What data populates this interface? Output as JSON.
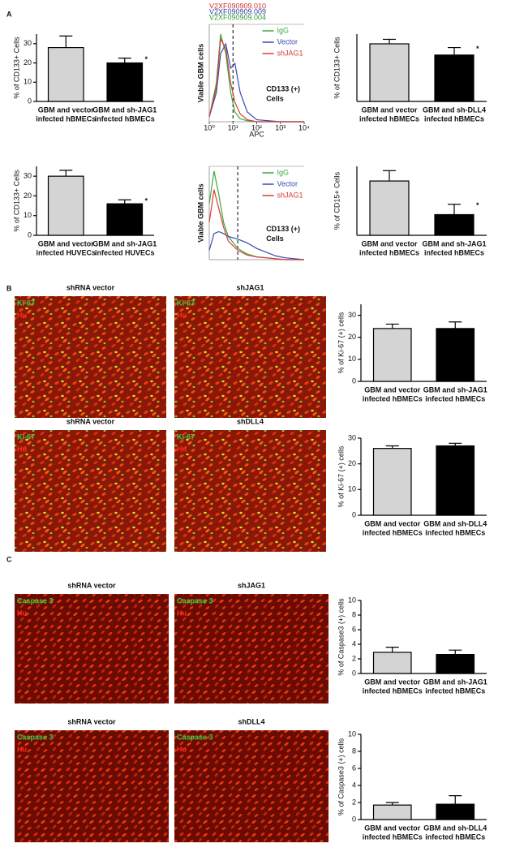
{
  "panel_labels": [
    "A",
    "B",
    "C"
  ],
  "images": [
    {
      "title": "shRNA vector",
      "stain": "Ki-67",
      "counterstain": "Hu"
    },
    {
      "title": "shJAG1",
      "stain": "Ki-67",
      "counterstain": "Hu"
    },
    {
      "title": "shRNA vector",
      "stain": "Ki-67",
      "counterstain": "Hu"
    },
    {
      "title": "shDLL4",
      "stain": "Ki-67",
      "counterstain": "Hu"
    },
    {
      "title": "shRNA vector",
      "stain": "Caspase 3",
      "counterstain": "Hu"
    },
    {
      "title": "shJAG1",
      "stain": "Caspase 3",
      "counterstain": "Hu"
    },
    {
      "title": "shRNA vector",
      "stain": "Caspase 3",
      "counterstain": "Hu"
    },
    {
      "title": "shDLL4",
      "stain": "Caspase 3",
      "counterstain": "Hu"
    }
  ],
  "chart_data": [
    {
      "type": "bar",
      "ylabel": "% of CD133+ Cells",
      "categories": [
        [
          "GBM and vector",
          "infected hBMECs"
        ],
        [
          "GBM and sh-JAG1",
          "infected hBMECs"
        ]
      ],
      "values": [
        28,
        20
      ],
      "errors": [
        6,
        2.5
      ],
      "colors": [
        "#d4d4d4",
        "#000000"
      ],
      "ylim": [
        0,
        35
      ],
      "yticks": [
        0,
        10,
        20,
        30
      ],
      "annotation": "*"
    },
    {
      "type": "line",
      "ylabel": "Viable GBM cells",
      "xlabel": "APC",
      "log_x": true,
      "header_labels": [
        {
          "text": "V2XF090909.010",
          "color": "#d03030"
        },
        {
          "text": "V2XF090909.009",
          "color": "#3040b0"
        },
        {
          "text": "V2XF090909.004",
          "color": "#30a030"
        }
      ],
      "x": [
        1,
        2,
        3,
        5,
        8,
        12,
        20,
        40,
        100,
        1000,
        10000
      ],
      "xlim": [
        1,
        10000
      ],
      "xticks": [
        {
          "value": 1,
          "label": "10⁰"
        },
        {
          "value": 10,
          "label": "10¹"
        },
        {
          "value": 100,
          "label": "10²"
        },
        {
          "value": 1000,
          "label": "10³"
        },
        {
          "value": 10000,
          "label": "10⁴"
        }
      ],
      "ylim": [
        0,
        100
      ],
      "yticks": [],
      "threshold": 10,
      "series": [
        {
          "name": "IgG",
          "color": "#3aa83a",
          "values": [
            5,
            40,
            90,
            70,
            30,
            10,
            3,
            1,
            0,
            0,
            0
          ]
        },
        {
          "name": "Vector",
          "color": "#3a4ab0",
          "values": [
            5,
            30,
            70,
            80,
            55,
            60,
            30,
            10,
            2,
            0,
            0
          ]
        },
        {
          "name": "shJAG1",
          "color": "#d83a3a",
          "values": [
            5,
            35,
            85,
            75,
            40,
            20,
            8,
            2,
            0,
            0,
            0
          ]
        }
      ],
      "annotation": [
        "CD133 (+)",
        "Cells"
      ]
    },
    {
      "type": "bar",
      "ylabel": "% of CD133+ Cells",
      "categories": [
        [
          "GBM and vector",
          "infected hBMECs"
        ],
        [
          "GBM and sh-DLL4",
          "infected hBMECs"
        ]
      ],
      "values": [
        38.5,
        31
      ],
      "errors": [
        3,
        5
      ],
      "colors": [
        "#d4d4d4",
        "#000000"
      ],
      "ylim": [
        0,
        45
      ],
      "yticks": [],
      "annotation": "*"
    },
    {
      "type": "bar",
      "ylabel": "% of CD133+ Cells",
      "categories": [
        [
          "GBM and vector",
          "infected HUVECs"
        ],
        [
          "GBM and sh-JAG1",
          "infected HUVECs"
        ]
      ],
      "values": [
        30,
        16
      ],
      "errors": [
        3,
        2
      ],
      "colors": [
        "#d4d4d4",
        "#000000"
      ],
      "ylim": [
        0,
        35
      ],
      "yticks": [
        0,
        10,
        20,
        30
      ],
      "annotation": "*"
    },
    {
      "type": "line",
      "ylabel": "Viable GBM cells",
      "log_x": false,
      "x": [
        0,
        0.5,
        1,
        1.5,
        2,
        3,
        4,
        5,
        6,
        7,
        8,
        10
      ],
      "xlim": [
        0,
        10
      ],
      "xticks": [],
      "ylim": [
        0,
        100
      ],
      "yticks": [],
      "threshold": 3,
      "series": [
        {
          "name": "IgG",
          "color": "#3aa83a",
          "values": [
            60,
            95,
            70,
            40,
            25,
            12,
            6,
            3,
            2,
            1,
            0,
            0
          ]
        },
        {
          "name": "Vector",
          "color": "#3a4ab0",
          "values": [
            10,
            28,
            30,
            28,
            25,
            22,
            18,
            12,
            8,
            4,
            2,
            0
          ]
        },
        {
          "name": "shJAG1",
          "color": "#d83a3a",
          "values": [
            40,
            75,
            55,
            35,
            20,
            10,
            5,
            3,
            2,
            1,
            0,
            0
          ]
        }
      ],
      "annotation": [
        "CD133 (+)",
        "Cells"
      ]
    },
    {
      "type": "bar",
      "ylabel": "% of CD15+ Cells",
      "categories": [
        [
          "GBM and vector",
          "infected hBMECs"
        ],
        [
          "GBM and sh-JAG1",
          "infected hBMECs"
        ]
      ],
      "values": [
        63,
        24
      ],
      "errors": [
        12,
        12
      ],
      "colors": [
        "#d4d4d4",
        "#000000"
      ],
      "ylim": [
        0,
        80
      ],
      "yticks": [],
      "annotation": "*"
    },
    {
      "type": "bar",
      "ylabel": "% of Ki-67 (+) cells",
      "categories": [
        [
          "GBM and vector",
          "infected hBMECs"
        ],
        [
          "GBM and sh-JAG1",
          "infected hBMECs"
        ]
      ],
      "values": [
        24,
        24
      ],
      "errors": [
        2,
        3
      ],
      "colors": [
        "#d4d4d4",
        "#000000"
      ],
      "ylim": [
        0,
        35
      ],
      "yticks": [
        0,
        10,
        20,
        30
      ]
    },
    {
      "type": "bar",
      "ylabel": "% of Ki-67 (+) cells",
      "categories": [
        [
          "GBM and vector",
          "infected hBMECs"
        ],
        [
          "GBM and sh-DLL4",
          "infected hBMECs"
        ]
      ],
      "values": [
        26,
        27
      ],
      "errors": [
        1,
        1
      ],
      "colors": [
        "#d4d4d4",
        "#000000"
      ],
      "ylim": [
        0,
        30
      ],
      "yticks": [
        0,
        10,
        20,
        30
      ]
    },
    {
      "type": "bar",
      "ylabel": "% of Caspase3 (+) cells",
      "categories": [
        [
          "GBM and vector",
          "infected hBMECs"
        ],
        [
          "GBM and sh-JAG1",
          "infected hBMECs"
        ]
      ],
      "values": [
        2.9,
        2.6
      ],
      "errors": [
        0.7,
        0.6
      ],
      "colors": [
        "#d4d4d4",
        "#000000"
      ],
      "ylim": [
        0,
        10
      ],
      "yticks": [
        0,
        2,
        4,
        6,
        8,
        10
      ]
    },
    {
      "type": "bar",
      "ylabel": "% of Caspase3 (+) cells",
      "categories": [
        [
          "GBM and vector",
          "infected hBMECs"
        ],
        [
          "GBM and sh-DLL4",
          "infected hBMECs"
        ]
      ],
      "values": [
        1.7,
        1.8
      ],
      "errors": [
        0.3,
        1.0
      ],
      "colors": [
        "#d4d4d4",
        "#000000"
      ],
      "ylim": [
        0,
        10
      ],
      "yticks": [
        0,
        2,
        4,
        6,
        8,
        10
      ]
    }
  ]
}
